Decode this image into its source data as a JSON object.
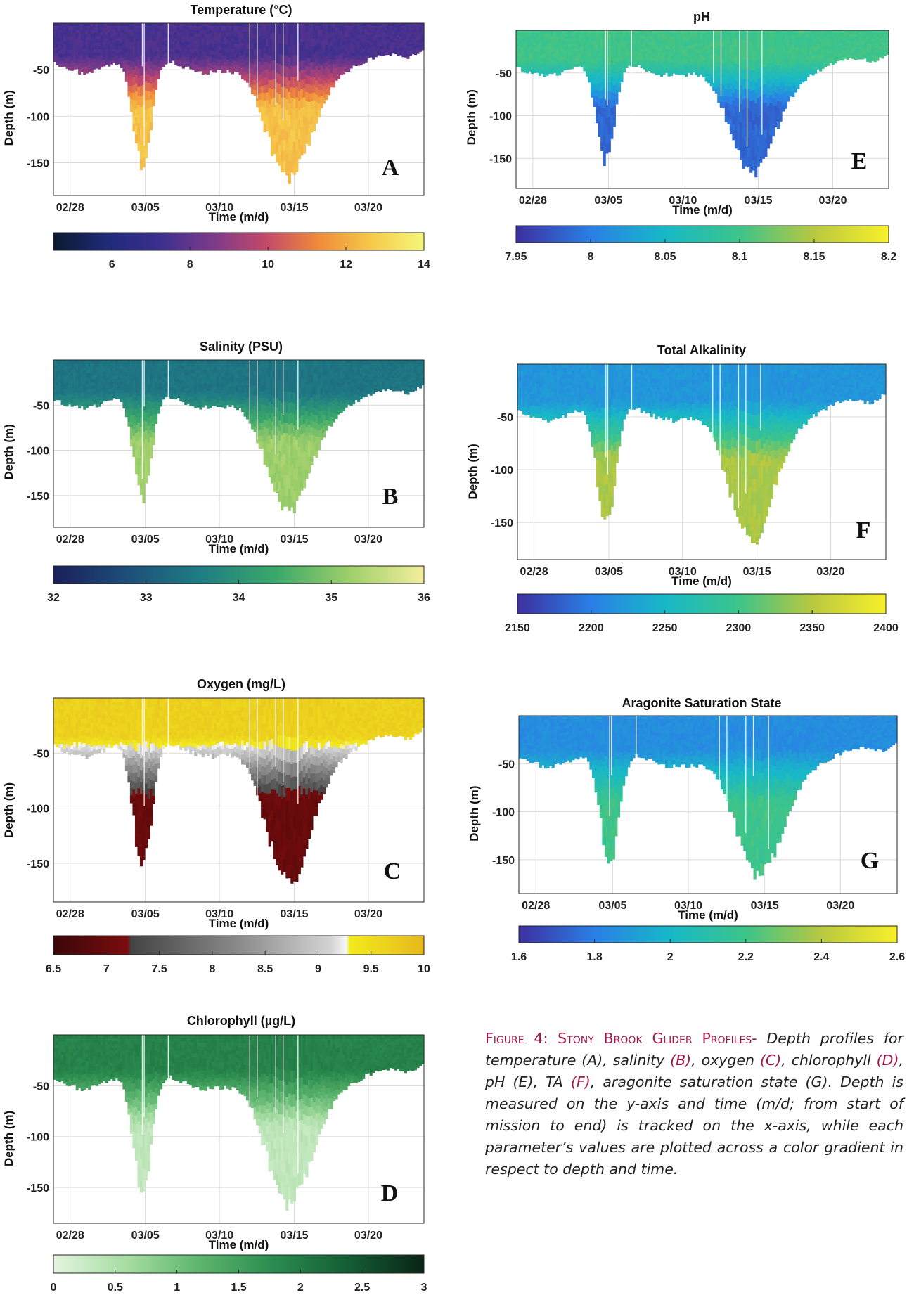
{
  "chart_data": [
    {
      "id": "A",
      "type": "heatmap",
      "title": "Temperature (°C)",
      "ylabel": "Depth (m)",
      "xlabel": "Time (m/d)",
      "x_ticks": [
        "02/28",
        "03/05",
        "03/10",
        "03/15",
        "03/20"
      ],
      "y_ticks": [
        "-50",
        "-100",
        "-150"
      ],
      "ylim": [
        -185,
        0
      ],
      "panel_letter": "A",
      "colorbar": {
        "min": 4.5,
        "max": 14,
        "ticks": [
          "6",
          "8",
          "10",
          "12",
          "14"
        ],
        "colors": [
          "#0b1a2e",
          "#1e2a78",
          "#3b2f8f",
          "#7b3a8a",
          "#c2486a",
          "#f08a3a",
          "#f6c94a",
          "#f4f77a"
        ]
      },
      "surface_range": [
        6,
        9
      ],
      "deep_range": [
        11,
        14
      ]
    },
    {
      "id": "B",
      "type": "heatmap",
      "title": "Salinity (PSU)",
      "ylabel": "Depth (m)",
      "xlabel": "Time (m/d)",
      "x_ticks": [
        "02/28",
        "03/05",
        "03/10",
        "03/15",
        "03/20"
      ],
      "y_ticks": [
        "-50",
        "-100",
        "-150"
      ],
      "ylim": [
        -185,
        0
      ],
      "panel_letter": "B",
      "colorbar": {
        "min": 32,
        "max": 36,
        "ticks": [
          "32",
          "33",
          "34",
          "35",
          "36"
        ],
        "colors": [
          "#1b1f5a",
          "#1d4f7a",
          "#1f7d84",
          "#3aa86a",
          "#9fcf6a",
          "#f3ee9e"
        ]
      },
      "surface_range": [
        33.2,
        33.7
      ],
      "deep_range": [
        34.8,
        35.6
      ]
    },
    {
      "id": "C",
      "type": "heatmap",
      "title": "Oxygen (mg/L)",
      "ylabel": "Depth (m)",
      "xlabel": "Time (m/d)",
      "x_ticks": [
        "02/28",
        "03/05",
        "03/10",
        "03/15",
        "03/20"
      ],
      "y_ticks": [
        "-50",
        "-100",
        "-150"
      ],
      "ylim": [
        -185,
        0
      ],
      "panel_letter": "C",
      "colorbar": {
        "min": 6.5,
        "max": 10,
        "ticks": [
          "6.5",
          "7",
          "7.5",
          "8",
          "8.5",
          "9",
          "9.5",
          "10"
        ],
        "colors": [
          "#3a0607",
          "#7a0d0e",
          "#444444",
          "#8a8a8a",
          "#d4d4d4",
          "#f7f7f7",
          "#f2ea1c",
          "#e6b81e"
        ],
        "stops": [
          0,
          0.2,
          0.21,
          0.5,
          0.75,
          0.79,
          0.8,
          1
        ]
      },
      "surface_range": [
        9.4,
        9.9
      ],
      "deep_range": [
        6.6,
        7.4
      ]
    },
    {
      "id": "D",
      "type": "heatmap",
      "title": "Chlorophyll (µg/L)",
      "ylabel": "Depth (m)",
      "xlabel": "Time (m/d)",
      "x_ticks": [
        "02/28",
        "03/05",
        "03/10",
        "03/15",
        "03/20"
      ],
      "y_ticks": [
        "-50",
        "-100",
        "-150"
      ],
      "ylim": [
        -185,
        0
      ],
      "panel_letter": "D",
      "colorbar": {
        "min": 0,
        "max": 3,
        "ticks": [
          "0",
          "0.5",
          "1",
          "1.5",
          "2",
          "2.5",
          "3"
        ],
        "colors": [
          "#e4f5df",
          "#a6dca2",
          "#5bb46d",
          "#2a8a4e",
          "#145c34",
          "#0a2416"
        ]
      },
      "surface_range": [
        1.6,
        2.2
      ],
      "deep_range": [
        0.2,
        0.5
      ]
    },
    {
      "id": "E",
      "type": "heatmap",
      "title": "pH",
      "ylabel": "Depth (m)",
      "xlabel": "Time (m/d)",
      "x_ticks": [
        "02/28",
        "03/05",
        "03/10",
        "03/15",
        "03/20"
      ],
      "y_ticks": [
        "-50",
        "-100",
        "-150"
      ],
      "ylim": [
        -185,
        0
      ],
      "panel_letter": "E",
      "colorbar": {
        "min": 7.95,
        "max": 8.2,
        "ticks": [
          "7.95",
          "8",
          "8.05",
          "8.1",
          "8.15",
          "8.2"
        ],
        "colors": [
          "#3d2fa0",
          "#2a7fe6",
          "#18b8c8",
          "#3cc48a",
          "#b8c840",
          "#f8f02a"
        ]
      },
      "surface_range": [
        8.08,
        8.12
      ],
      "deep_range": [
        7.97,
        8.0
      ]
    },
    {
      "id": "F",
      "type": "heatmap",
      "title": "Total Alkalinity",
      "ylabel": "Depth (m)",
      "xlabel": "Time (m/d)",
      "x_ticks": [
        "02/28",
        "03/05",
        "03/10",
        "03/15",
        "03/20"
      ],
      "y_ticks": [
        "-50",
        "-100",
        "-150"
      ],
      "ylim": [
        -185,
        0
      ],
      "panel_letter": "F",
      "colorbar": {
        "min": 2150,
        "max": 2400,
        "ticks": [
          "2150",
          "2200",
          "2250",
          "2300",
          "2350",
          "2400"
        ],
        "colors": [
          "#3d2fa0",
          "#2a7fe6",
          "#18b8c8",
          "#3cc48a",
          "#b8c840",
          "#f8f02a"
        ]
      },
      "surface_range": [
        2205,
        2235
      ],
      "deep_range": [
        2330,
        2360
      ]
    },
    {
      "id": "G",
      "type": "heatmap",
      "title": "Aragonite Saturation State",
      "ylabel": "Depth (m)",
      "xlabel": "Time (m/d)",
      "x_ticks": [
        "02/28",
        "03/05",
        "03/10",
        "03/15",
        "03/20"
      ],
      "y_ticks": [
        "-50",
        "-100",
        "-150"
      ],
      "ylim": [
        -185,
        0
      ],
      "panel_letter": "G",
      "colorbar": {
        "min": 1.6,
        "max": 2.6,
        "ticks": [
          "1.6",
          "1.8",
          "2",
          "2.2",
          "2.4",
          "2.6"
        ],
        "colors": [
          "#3d2fa0",
          "#2a7fe6",
          "#18b8c8",
          "#3cc48a",
          "#b8c840",
          "#f8f02a"
        ]
      },
      "surface_range": [
        1.75,
        1.95
      ],
      "deep_range": [
        2.1,
        2.3
      ]
    }
  ],
  "caption": {
    "heading": "Figure 4: Stony Brook Glider Profiles-",
    "t1": " Depth profiles for temperature ",
    "a1": "(A)",
    "t2": ", salinity ",
    "a2": "(B)",
    "t3": ", oxygen ",
    "a3": "(C)",
    "t4": ", chlorophyll ",
    "a4": "(D)",
    "t5": ", pH ",
    "a5": "(E)",
    "t6": ", TA ",
    "a6": "(F)",
    "t7": ", aragonite saturation state (G). Depth is measured on the y-axis and time (m/d; from start of mission to end) is tracked on the x-axis, while each parameter’s values are plotted across a color gradient in respect to depth and time."
  }
}
